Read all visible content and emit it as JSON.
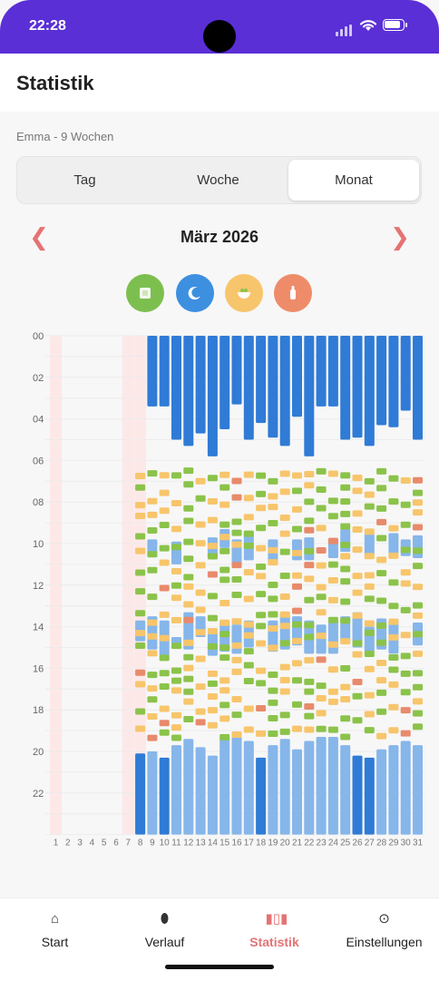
{
  "status": {
    "time": "22:28"
  },
  "header": {
    "title": "Statistik"
  },
  "subtitle": "Emma - 9 Wochen",
  "segments": [
    {
      "label": "Tag",
      "active": false
    },
    {
      "label": "Woche",
      "active": false
    },
    {
      "label": "Monat",
      "active": true
    }
  ],
  "month": {
    "label": "März 2026",
    "prev": "❮",
    "next": "❯"
  },
  "filters": [
    {
      "icon": "diaper-icon",
      "color": "#7cbf4f"
    },
    {
      "icon": "sleep-moon-icon",
      "color": "#3d8fe0"
    },
    {
      "icon": "feeding-bowl-icon",
      "color": "#f7c56b"
    },
    {
      "icon": "bottle-icon",
      "color": "#ee8c6a"
    }
  ],
  "chart_data": {
    "type": "timeline",
    "y_ticks": [
      "00",
      "02",
      "04",
      "06",
      "08",
      "10",
      "12",
      "14",
      "16",
      "18",
      "20",
      "22"
    ],
    "days": [
      "1",
      "2",
      "3",
      "4",
      "5",
      "6",
      "7",
      "8",
      "9",
      "10",
      "11",
      "12",
      "13",
      "14",
      "15",
      "16",
      "17",
      "18",
      "19",
      "20",
      "21",
      "22",
      "23",
      "24",
      "25",
      "26",
      "27",
      "28",
      "29",
      "30",
      "31"
    ],
    "legend_colors": {
      "sleep_night": "#2f7bd6",
      "sleep": "#86b6ea",
      "diaper": "#8bc34a",
      "feeding": "#f7c56b",
      "bottle": "#e88a6c"
    },
    "events": [
      {
        "d": 8,
        "s": 0,
        "e": 0
      },
      {
        "d": 9,
        "s": 0,
        "e": 3.4
      },
      {
        "d": 10,
        "s": 0,
        "e": 3.4
      },
      {
        "d": 11,
        "s": 0,
        "e": 5
      },
      {
        "d": 12,
        "s": 0,
        "e": 5.3
      },
      {
        "d": 13,
        "s": 0,
        "e": 4.7
      },
      {
        "d": 14,
        "s": 0,
        "e": 5.8
      },
      {
        "d": 15,
        "s": 0,
        "e": 4.5
      },
      {
        "d": 16,
        "s": 0,
        "e": 3.3
      },
      {
        "d": 17,
        "s": 0,
        "e": 5.0
      },
      {
        "d": 18,
        "s": 0,
        "e": 4.2
      },
      {
        "d": 19,
        "s": 0,
        "e": 4.9
      },
      {
        "d": 20,
        "s": 0,
        "e": 5.3
      },
      {
        "d": 21,
        "s": 0,
        "e": 3.9
      },
      {
        "d": 22,
        "s": 0,
        "e": 5.8
      },
      {
        "d": 23,
        "s": 0,
        "e": 3.4
      },
      {
        "d": 24,
        "s": 0,
        "e": 3.4
      },
      {
        "d": 25,
        "s": 0,
        "e": 5.0
      },
      {
        "d": 26,
        "s": 0,
        "e": 4.9
      },
      {
        "d": 27,
        "s": 0,
        "e": 5.3
      },
      {
        "d": 28,
        "s": 0,
        "e": 4.3
      },
      {
        "d": 29,
        "s": 0,
        "e": 4.4
      },
      {
        "d": 30,
        "s": 0,
        "e": 3.6
      },
      {
        "d": 31,
        "s": 0,
        "e": 5.0
      },
      {
        "d": 8,
        "s": 20.1,
        "e": 24,
        "t": "n"
      },
      {
        "d": 9,
        "s": 20.0,
        "e": 24
      },
      {
        "d": 10,
        "s": 20.3,
        "e": 24,
        "t": "n"
      },
      {
        "d": 11,
        "s": 19.7,
        "e": 24
      },
      {
        "d": 12,
        "s": 19.4,
        "e": 24
      },
      {
        "d": 13,
        "s": 19.8,
        "e": 24
      },
      {
        "d": 14,
        "s": 20.2,
        "e": 24
      },
      {
        "d": 15,
        "s": 19.3,
        "e": 24
      },
      {
        "d": 16,
        "s": 19.3,
        "e": 24
      },
      {
        "d": 17,
        "s": 19.5,
        "e": 24
      },
      {
        "d": 18,
        "s": 20.3,
        "e": 24,
        "t": "n"
      },
      {
        "d": 19,
        "s": 19.7,
        "e": 24
      },
      {
        "d": 20,
        "s": 19.4,
        "e": 24
      },
      {
        "d": 21,
        "s": 19.9,
        "e": 24
      },
      {
        "d": 22,
        "s": 19.5,
        "e": 24
      },
      {
        "d": 23,
        "s": 19.3,
        "e": 24
      },
      {
        "d": 24,
        "s": 19.3,
        "e": 24
      },
      {
        "d": 25,
        "s": 19.7,
        "e": 24
      },
      {
        "d": 26,
        "s": 20.2,
        "e": 24,
        "t": "n"
      },
      {
        "d": 27,
        "s": 20.3,
        "e": 24,
        "t": "n"
      },
      {
        "d": 28,
        "s": 19.9,
        "e": 24
      },
      {
        "d": 29,
        "s": 19.7,
        "e": 24
      },
      {
        "d": 30,
        "s": 19.5,
        "e": 24
      },
      {
        "d": 31,
        "s": 19.7,
        "e": 24
      },
      {
        "d": 8,
        "s": 13.7,
        "e": 14.7
      },
      {
        "d": 9,
        "s": 9.8,
        "e": 10.6
      },
      {
        "d": 9,
        "s": 13.5,
        "e": 15.1
      },
      {
        "d": 10,
        "s": 13.7,
        "e": 15.4
      },
      {
        "d": 11,
        "s": 9.9,
        "e": 11.0
      },
      {
        "d": 11,
        "s": 14.5,
        "e": 15.0
      },
      {
        "d": 12,
        "s": 13.3,
        "e": 15.1
      },
      {
        "d": 13,
        "s": 13.5,
        "e": 14.5
      },
      {
        "d": 14,
        "s": 9.7,
        "e": 10.7
      },
      {
        "d": 14,
        "s": 14.3,
        "e": 15.4
      },
      {
        "d": 15,
        "s": 9.3,
        "e": 10.2
      },
      {
        "d": 15,
        "s": 13.7,
        "e": 15.2
      },
      {
        "d": 16,
        "s": 9.8,
        "e": 11.0
      },
      {
        "d": 16,
        "s": 13.9,
        "e": 15.3
      },
      {
        "d": 17,
        "s": 9.4,
        "e": 10.8
      },
      {
        "d": 17,
        "s": 13.7,
        "e": 15.0
      },
      {
        "d": 19,
        "s": 9.8,
        "e": 11.0
      },
      {
        "d": 19,
        "s": 13.7,
        "e": 15.2
      },
      {
        "d": 20,
        "s": 13.4,
        "e": 15.1
      },
      {
        "d": 21,
        "s": 9.8,
        "e": 10.8
      },
      {
        "d": 21,
        "s": 13.5,
        "e": 14.9
      },
      {
        "d": 22,
        "s": 9.7,
        "e": 10.8
      },
      {
        "d": 22,
        "s": 13.7,
        "e": 15.3
      },
      {
        "d": 23,
        "s": 13.9,
        "e": 15.3
      },
      {
        "d": 24,
        "s": 9.8,
        "e": 10.7
      },
      {
        "d": 24,
        "s": 13.7,
        "e": 15.3
      },
      {
        "d": 25,
        "s": 9.3,
        "e": 10.4
      },
      {
        "d": 25,
        "s": 13.5,
        "e": 14.8
      },
      {
        "d": 26,
        "s": 13.3,
        "e": 15.0
      },
      {
        "d": 27,
        "s": 9.5,
        "e": 10.6
      },
      {
        "d": 27,
        "s": 14.0,
        "e": 15.2
      },
      {
        "d": 28,
        "s": 13.6,
        "e": 15.1
      },
      {
        "d": 29,
        "s": 9.5,
        "e": 10.6
      },
      {
        "d": 29,
        "s": 13.7,
        "e": 15.3
      },
      {
        "d": 30,
        "s": 9.8,
        "e": 10.6
      },
      {
        "d": 31,
        "s": 9.6,
        "e": 10.7
      },
      {
        "d": 31,
        "s": 13.8,
        "e": 14.9
      }
    ]
  },
  "tabs": [
    {
      "label": "Start",
      "icon": "home-icon",
      "active": false
    },
    {
      "label": "Verlauf",
      "icon": "history-icon",
      "active": false
    },
    {
      "label": "Statistik",
      "icon": "statistics-icon",
      "active": true
    },
    {
      "label": "Einstellungen",
      "icon": "settings-icon",
      "active": false
    }
  ]
}
